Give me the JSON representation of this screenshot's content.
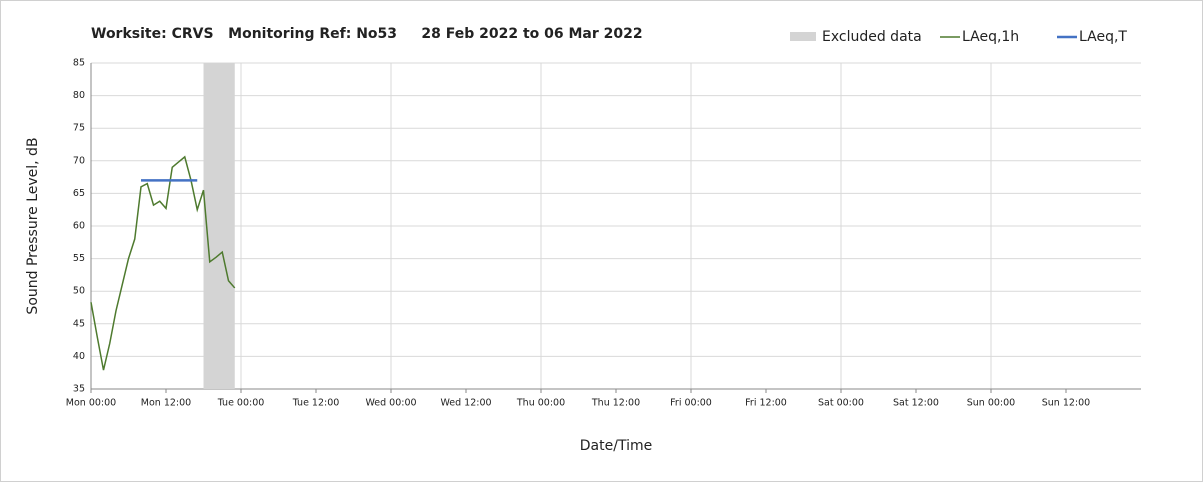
{
  "chart_data": {
    "type": "line",
    "title": "Worksite: CRVS   Monitoring Ref: No53     28 Feb 2022 to 06 Mar 2022",
    "x_label": "Date/Time",
    "y_label": "Sound Pressure Level, dB",
    "xlim": [
      0,
      168
    ],
    "xticks": [
      {
        "value": 0,
        "label": "Mon 00:00"
      },
      {
        "value": 12,
        "label": "Mon 12:00"
      },
      {
        "value": 24,
        "label": "Tue 00:00"
      },
      {
        "value": 36,
        "label": "Tue 12:00"
      },
      {
        "value": 48,
        "label": "Wed 00:00"
      },
      {
        "value": 60,
        "label": "Wed 12:00"
      },
      {
        "value": 72,
        "label": "Thu 00:00"
      },
      {
        "value": 84,
        "label": "Thu 12:00"
      },
      {
        "value": 96,
        "label": "Fri 00:00"
      },
      {
        "value": 108,
        "label": "Fri 12:00"
      },
      {
        "value": 120,
        "label": "Sat 00:00"
      },
      {
        "value": 132,
        "label": "Sat 12:00"
      },
      {
        "value": 144,
        "label": "Sun 00:00"
      },
      {
        "value": 156,
        "label": "Sun 12:00"
      }
    ],
    "ylim": [
      35,
      85
    ],
    "yticks": [
      35,
      40,
      45,
      50,
      55,
      60,
      65,
      70,
      75,
      80,
      85
    ],
    "grid": true,
    "excluded": [
      {
        "name": "Excluded data",
        "color": "#d4d4d4",
        "x": [
          18,
          23
        ]
      }
    ],
    "series": [
      {
        "name": "LAeq,1h",
        "color": "#4e7a2e",
        "x": [
          0,
          1,
          2,
          3,
          4,
          5,
          6,
          7,
          8,
          9,
          10,
          11,
          12,
          13,
          14,
          15,
          16,
          17,
          18,
          19,
          20,
          21,
          22,
          23
        ],
        "values": [
          48.3,
          43,
          37.9,
          42,
          47,
          51,
          55,
          58,
          66,
          66.5,
          63.2,
          63.8,
          62.7,
          69,
          69.8,
          70.6,
          67,
          62.5,
          65.5,
          54.5,
          55.2,
          56,
          51.6,
          50.5
        ]
      },
      {
        "name": "LAeq,T",
        "color": "#4472c4",
        "x": [
          8,
          17
        ],
        "values": [
          67,
          67
        ]
      }
    ]
  }
}
